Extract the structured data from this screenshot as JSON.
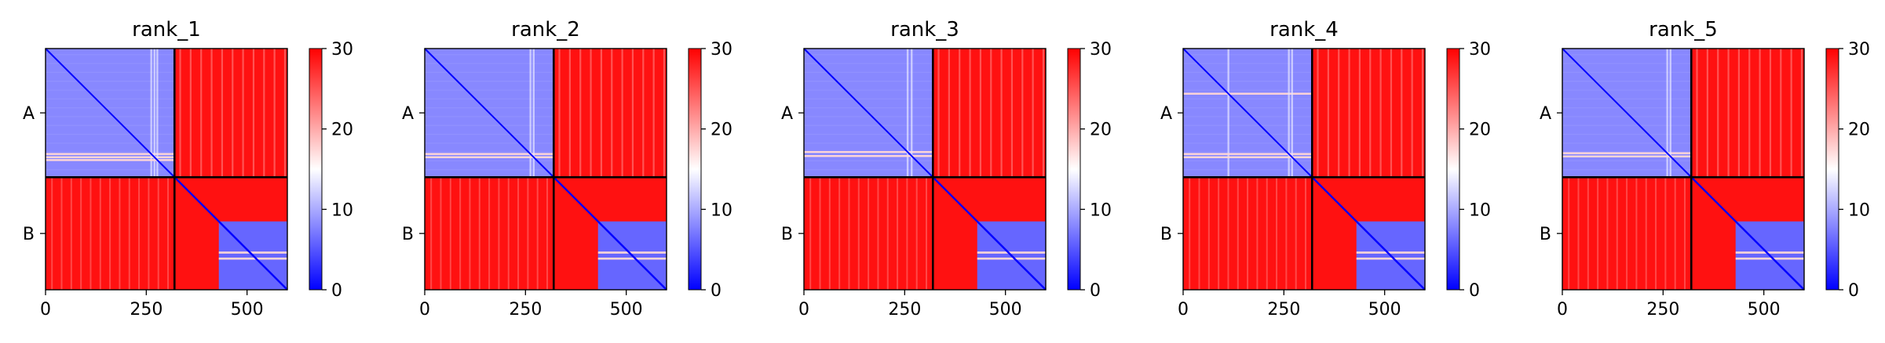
{
  "chart_data": {
    "type": "heatmap",
    "colormap": {
      "name": "bwr",
      "low_color": "#0000ff",
      "mid_color": "#ffffff",
      "high_color": "#ff0000",
      "vmin": 0,
      "vmax": 30
    },
    "sequence_length": 600,
    "chain_boundary": 320,
    "chains": [
      "A",
      "B"
    ],
    "xticks": [
      0,
      250,
      500
    ],
    "colorbar_ticks": [
      0,
      10,
      20,
      30
    ],
    "panels": [
      {
        "title": "rank_1",
        "blocks": {
          "A_A": 8,
          "A_B": 29,
          "B_A": 29,
          "B_B_flexible": 29,
          "B_B_domain": 6
        },
        "chain_B_domain_start": 430,
        "chain_A_low_confidence_rows": [
          260,
          268,
          275
        ]
      },
      {
        "title": "rank_2",
        "blocks": {
          "A_A": 8,
          "A_B": 29,
          "B_A": 29,
          "B_B_flexible": 29,
          "B_B_domain": 6
        },
        "chain_B_domain_start": 430,
        "chain_A_low_confidence_rows": [
          260,
          268
        ]
      },
      {
        "title": "rank_3",
        "blocks": {
          "A_A": 8,
          "A_B": 29,
          "B_A": 29,
          "B_B_flexible": 29,
          "B_B_domain": 6
        },
        "chain_B_domain_start": 430,
        "chain_A_low_confidence_rows": [
          255,
          265
        ]
      },
      {
        "title": "rank_4",
        "blocks": {
          "A_A": 8,
          "A_B": 29,
          "B_A": 29,
          "B_B_flexible": 29,
          "B_B_domain": 6
        },
        "chain_B_domain_start": 430,
        "chain_A_low_confidence_rows": [
          110,
          260,
          268
        ]
      },
      {
        "title": "rank_5",
        "blocks": {
          "A_A": 8,
          "A_B": 29,
          "B_A": 29,
          "B_B_flexible": 29,
          "B_B_domain": 6
        },
        "chain_B_domain_start": 430,
        "chain_A_low_confidence_rows": [
          258,
          266
        ]
      }
    ]
  }
}
